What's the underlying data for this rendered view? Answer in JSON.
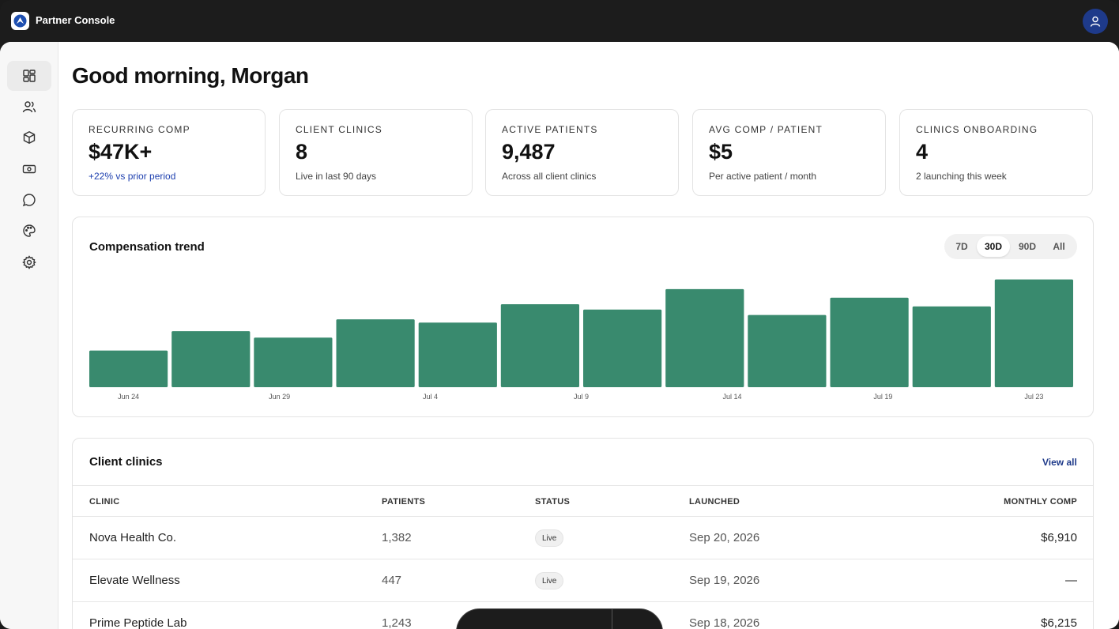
{
  "app": {
    "title": "Partner Console"
  },
  "sidebar": {
    "items": [
      "dashboard-icon",
      "users-icon",
      "box-icon",
      "money-icon",
      "chat-icon",
      "palette-icon",
      "gear-icon"
    ]
  },
  "greeting": "Good morning, Morgan",
  "stats": [
    {
      "label": "RECURRING COMP",
      "value": "$47K+",
      "sub": "+22% vs prior period"
    },
    {
      "label": "CLIENT CLINICS",
      "value": "8",
      "sub": "Live in last 90 days"
    },
    {
      "label": "ACTIVE PATIENTS",
      "value": "9,487",
      "sub": "Across all client clinics"
    },
    {
      "label": "AVG COMP / PATIENT",
      "value": "$5",
      "sub": "Per active patient / month"
    },
    {
      "label": "CLINICS ONBOARDING",
      "value": "4",
      "sub": "2 launching this week"
    }
  ],
  "chart": {
    "title": "Compensation trend",
    "ranges": [
      "7D",
      "30D",
      "90D",
      "All"
    ],
    "selected_range": "30D"
  },
  "chart_data": {
    "type": "bar",
    "title": "Compensation trend",
    "xlabel": "",
    "ylabel": "",
    "tick_labels": [
      "Jun 24",
      "Jun 29",
      "Jul 4",
      "Jul 9",
      "Jul 14",
      "Jul 19",
      "Jul 23"
    ],
    "values": [
      34,
      52,
      46,
      63,
      60,
      77,
      72,
      91,
      67,
      83,
      75,
      100
    ],
    "ylim": [
      0,
      110
    ],
    "grid": false,
    "color": "#398a6e"
  },
  "table": {
    "title": "Client clinics",
    "view_all": "View all",
    "columns": [
      "CLINIC",
      "PATIENTS",
      "STATUS",
      "LAUNCHED",
      "MONTHLY COMP"
    ],
    "rows": [
      {
        "clinic": "Nova Health Co.",
        "patients": "1,382",
        "status": "Live",
        "launched": "Sep 20, 2026",
        "comp": "$6,910"
      },
      {
        "clinic": "Elevate Wellness",
        "patients": "447",
        "status": "Live",
        "launched": "Sep 19, 2026",
        "comp": "—"
      },
      {
        "clinic": "Prime Peptide Lab",
        "patients": "1,243",
        "status": "",
        "launched": "Sep 18, 2026",
        "comp": "$6,215"
      }
    ]
  }
}
